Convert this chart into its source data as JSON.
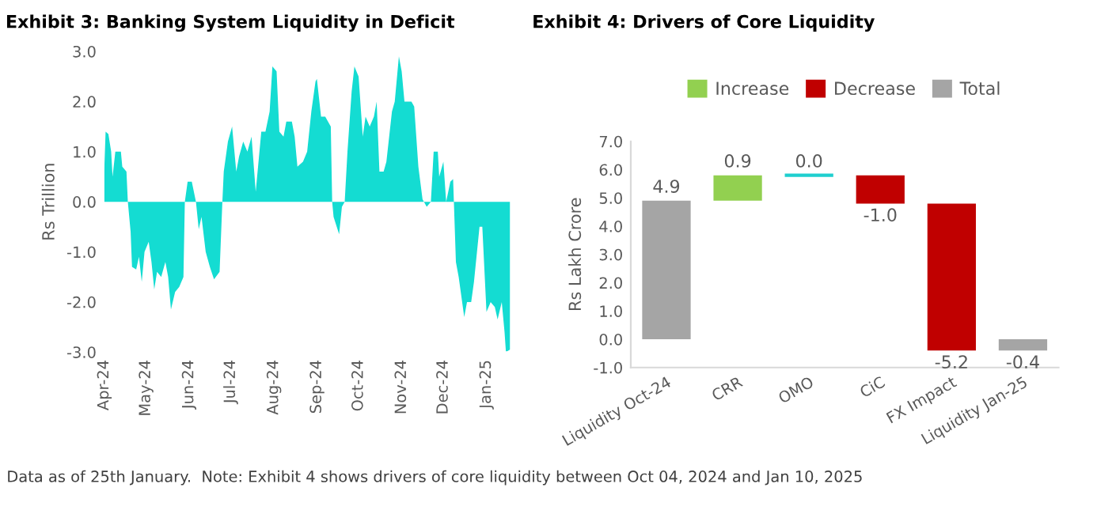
{
  "chart_data": [
    {
      "type": "area",
      "title": "Exhibit 3: Banking System Liquidity in Deficit",
      "ylabel": "Rs Trillion",
      "x": [
        "2024-04-01",
        "2024-04-02",
        "2024-04-04",
        "2024-04-06",
        "2024-04-07",
        "2024-04-09",
        "2024-04-13",
        "2024-04-14",
        "2024-04-17",
        "2024-04-18",
        "2024-04-20",
        "2024-04-21",
        "2024-04-24",
        "2024-04-26",
        "2024-04-28",
        "2024-04-30",
        "2024-05-03",
        "2024-05-05",
        "2024-05-07",
        "2024-05-09",
        "2024-05-12",
        "2024-05-15",
        "2024-05-17",
        "2024-05-19",
        "2024-05-22",
        "2024-05-25",
        "2024-05-28",
        "2024-05-29",
        "2024-05-31",
        "2024-06-03",
        "2024-06-06",
        "2024-06-08",
        "2024-06-10",
        "2024-06-13",
        "2024-06-16",
        "2024-06-19",
        "2024-06-23",
        "2024-06-25",
        "2024-06-26",
        "2024-06-29",
        "2024-07-02",
        "2024-07-05",
        "2024-07-07",
        "2024-07-10",
        "2024-07-13",
        "2024-07-16",
        "2024-07-19",
        "2024-07-23",
        "2024-07-26",
        "2024-07-29",
        "2024-07-31",
        "2024-08-03",
        "2024-08-05",
        "2024-08-08",
        "2024-08-10",
        "2024-08-14",
        "2024-08-16",
        "2024-08-18",
        "2024-08-22",
        "2024-08-25",
        "2024-08-28",
        "2024-08-31",
        "2024-09-01",
        "2024-09-04",
        "2024-09-07",
        "2024-09-11",
        "2024-09-12",
        "2024-09-13",
        "2024-09-17",
        "2024-09-19",
        "2024-09-21",
        "2024-09-23",
        "2024-09-26",
        "2024-09-28",
        "2024-10-01",
        "2024-10-04",
        "2024-10-06",
        "2024-10-09",
        "2024-10-12",
        "2024-10-14",
        "2024-10-16",
        "2024-10-19",
        "2024-10-21",
        "2024-10-25",
        "2024-10-27",
        "2024-10-30",
        "2024-11-01",
        "2024-11-03",
        "2024-11-08",
        "2024-11-10",
        "2024-11-13",
        "2024-11-16",
        "2024-11-19",
        "2024-11-22",
        "2024-11-24",
        "2024-11-27",
        "2024-11-28",
        "2024-12-01",
        "2024-12-03",
        "2024-12-06",
        "2024-12-08",
        "2024-12-10",
        "2024-12-12",
        "2024-12-16",
        "2024-12-18",
        "2024-12-21",
        "2024-12-23",
        "2024-12-27",
        "2024-12-29",
        "2025-01-01",
        "2025-01-04",
        "2025-01-07",
        "2025-01-09",
        "2025-01-12",
        "2025-01-14",
        "2025-01-15",
        "2025-01-18"
      ],
      "series": [
        {
          "color": "#14dcd2",
          "values": [
            0.6,
            1.4,
            1.35,
            1.0,
            0.5,
            1.0,
            1.0,
            0.7,
            0.6,
            0.0,
            -0.6,
            -1.3,
            -1.35,
            -1.1,
            -1.6,
            -1.0,
            -0.8,
            -1.2,
            -1.75,
            -1.4,
            -1.5,
            -1.2,
            -1.5,
            -2.15,
            -1.8,
            -1.7,
            -1.5,
            0.0,
            0.4,
            0.4,
            0.0,
            -0.55,
            -0.3,
            -1.0,
            -1.3,
            -1.55,
            -1.4,
            0.0,
            0.6,
            1.2,
            1.5,
            0.6,
            0.9,
            1.2,
            1.0,
            1.3,
            0.2,
            1.4,
            1.4,
            1.8,
            2.7,
            2.6,
            1.4,
            1.3,
            1.6,
            1.6,
            1.3,
            0.7,
            0.8,
            1.0,
            1.8,
            2.4,
            2.45,
            1.7,
            1.7,
            1.5,
            0.0,
            -0.3,
            -0.65,
            -0.1,
            0.0,
            1.0,
            2.2,
            2.7,
            2.5,
            1.3,
            1.7,
            1.5,
            1.7,
            2.0,
            0.6,
            0.6,
            0.8,
            1.8,
            2.0,
            2.9,
            2.6,
            2.0,
            2.0,
            1.9,
            0.7,
            0.05,
            -0.1,
            0.0,
            1.0,
            1.0,
            0.5,
            0.8,
            0.0,
            0.4,
            0.45,
            -1.2,
            -1.5,
            -2.3,
            -2.0,
            -2.0,
            -1.6,
            -0.5,
            -0.5,
            -2.2,
            -2.0,
            -2.1,
            -2.35,
            -2.0,
            -2.6,
            -3.0,
            -2.95
          ]
        }
      ],
      "xlim": [
        "2024-04-01",
        "2025-01-18"
      ],
      "xticks": [
        {
          "value": "2024-04-01",
          "label": "Apr-24"
        },
        {
          "value": "2024-05-01",
          "label": "May-24"
        },
        {
          "value": "2024-06-01",
          "label": "Jun-24"
        },
        {
          "value": "2024-07-01",
          "label": "Jul-24"
        },
        {
          "value": "2024-08-01",
          "label": "Aug-24"
        },
        {
          "value": "2024-09-01",
          "label": "Sep-24"
        },
        {
          "value": "2024-10-01",
          "label": "Oct-24"
        },
        {
          "value": "2024-11-01",
          "label": "Nov-24"
        },
        {
          "value": "2024-12-01",
          "label": "Dec-24"
        },
        {
          "value": "2025-01-01",
          "label": "Jan-25"
        }
      ],
      "ylim": [
        -3,
        3
      ],
      "yticks": [
        {
          "value": -3,
          "label": "-3.0"
        },
        {
          "value": -2,
          "label": "-2.0"
        },
        {
          "value": -1,
          "label": "-1.0"
        },
        {
          "value": 0,
          "label": "0.0"
        },
        {
          "value": 1,
          "label": "1.0"
        },
        {
          "value": 2,
          "label": "2.0"
        },
        {
          "value": 3,
          "label": "3.0"
        }
      ],
      "grid": false
    },
    {
      "type": "bar",
      "title": "Exhibit 4: Drivers of Core Liquidity",
      "ylabel": "Rs Lakh Crore",
      "categories": [
        "Liquidity Oct-24",
        "CRR",
        "OMO",
        "CiC",
        "FX Impact",
        "Liquidity Jan-25"
      ],
      "series": [
        {
          "name": "Increase",
          "color": "#92d050",
          "colors": [
            null,
            "#92d050",
            "#1fcfcf",
            null,
            null,
            null
          ],
          "values": [
            null,
            0.9,
            0.0,
            null,
            null,
            null
          ],
          "base": [
            null,
            4.9,
            5.8,
            null,
            null,
            null
          ],
          "value_labels": [
            null,
            "0.9",
            "0.0",
            null,
            null,
            null
          ]
        },
        {
          "name": "Decrease",
          "color": "#c00000",
          "values": [
            null,
            null,
            null,
            -1.0,
            -5.2,
            null
          ],
          "base": [
            null,
            null,
            null,
            5.8,
            4.8,
            null
          ],
          "value_labels": [
            null,
            null,
            null,
            "-1.0",
            "-5.2",
            null
          ]
        },
        {
          "name": "Total",
          "color": "#a5a5a5",
          "values": [
            4.9,
            null,
            null,
            null,
            null,
            -0.4
          ],
          "base": [
            0,
            null,
            null,
            null,
            null,
            0
          ],
          "value_labels": [
            "4.9",
            null,
            null,
            null,
            null,
            "-0.4"
          ]
        }
      ],
      "ylim": [
        -1,
        7
      ],
      "yticks": [
        {
          "value": -1,
          "label": "-1.0"
        },
        {
          "value": 0,
          "label": "0.0"
        },
        {
          "value": 1,
          "label": "1.0"
        },
        {
          "value": 2,
          "label": "2.0"
        },
        {
          "value": 3,
          "label": "3.0"
        },
        {
          "value": 4,
          "label": "4.0"
        },
        {
          "value": 5,
          "label": "5.0"
        },
        {
          "value": 6,
          "label": "6.0"
        },
        {
          "value": 7,
          "label": "7.0"
        }
      ],
      "grid": false,
      "legend": "top",
      "annotations": [
        "Data as of 25th January.  Note: Exhibit 4 shows drivers of core liquidity between Oct 04, 2024 and Jan 10, 2025"
      ]
    }
  ]
}
